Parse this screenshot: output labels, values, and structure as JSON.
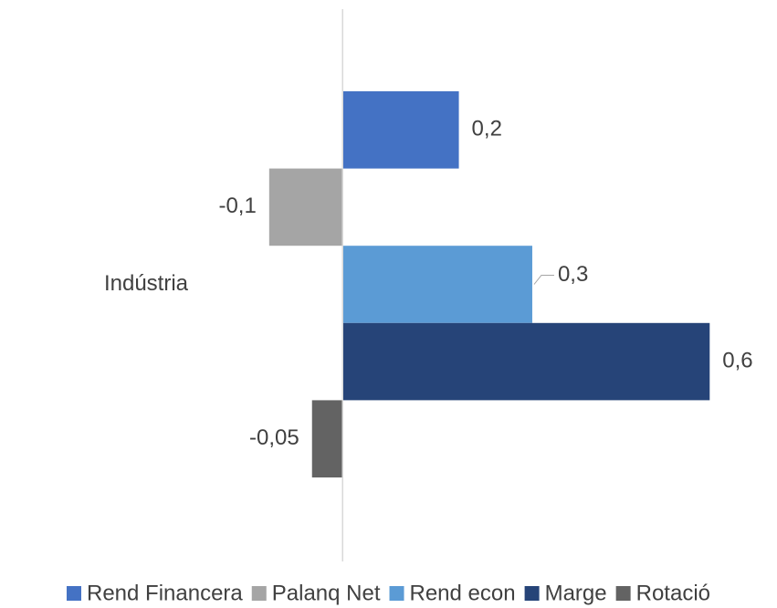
{
  "chart_data": {
    "type": "bar",
    "orientation": "horizontal",
    "categories": [
      "Indústria"
    ],
    "series": [
      {
        "name": "Rend Financera",
        "color": "#4472c4",
        "values": [
          0.19
        ],
        "value_labels": [
          "0,2"
        ]
      },
      {
        "name": "Palanq Net",
        "color": "#a5a5a5",
        "values": [
          -0.12
        ],
        "value_labels": [
          "-0,1"
        ]
      },
      {
        "name": "Rend econ",
        "color": "#5b9bd5",
        "values": [
          0.31
        ],
        "value_labels": [
          "0,3"
        ]
      },
      {
        "name": "Marge",
        "color": "#264478",
        "values": [
          0.6
        ],
        "value_labels": [
          "0,6"
        ]
      },
      {
        "name": "Rotació",
        "color": "#636363",
        "values": [
          -0.05
        ],
        "value_labels": [
          "-0,05"
        ]
      }
    ],
    "xlim": [
      -0.56,
      0.71
    ],
    "legend": "bottom"
  }
}
